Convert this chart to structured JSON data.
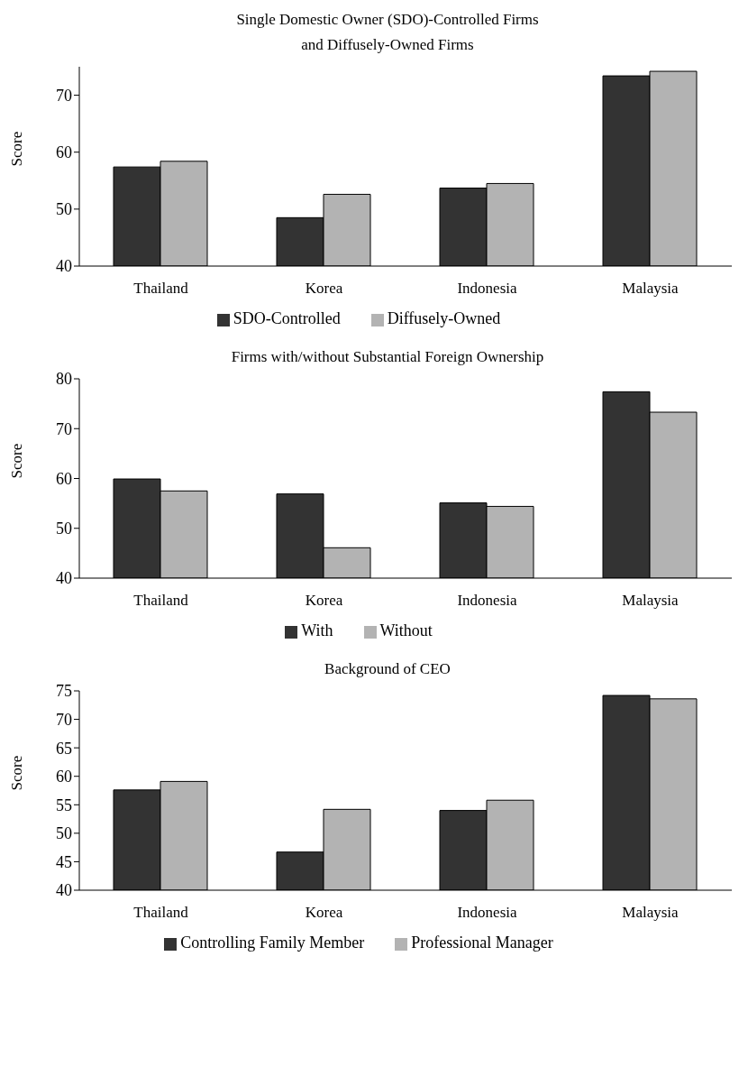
{
  "chart_data": [
    {
      "type": "bar",
      "title": "Single Domestic Owner (SDO)-Controlled Firms\nand Diffusely-Owned Firms",
      "ylabel": "Score",
      "categories": [
        "Thailand",
        "Korea",
        "Indonesia",
        "Malaysia"
      ],
      "series": [
        {
          "name": "SDO-Controlled",
          "color": "#333333",
          "values": [
            57.4,
            48.5,
            53.7,
            73.4
          ]
        },
        {
          "name": "Diffusely-Owned",
          "color": "#b3b3b3",
          "values": [
            58.4,
            52.6,
            54.5,
            74.2
          ]
        }
      ],
      "ylim": [
        40,
        75
      ],
      "yticks": [
        40,
        50,
        60,
        70
      ],
      "grid": false,
      "legend": "bottom"
    },
    {
      "type": "bar",
      "title": "Firms with/without Substantial Foreign Ownership",
      "ylabel": "Score",
      "categories": [
        "Thailand",
        "Korea",
        "Indonesia",
        "Malaysia"
      ],
      "series": [
        {
          "name": "With",
          "color": "#333333",
          "values": [
            59.9,
            56.9,
            55.1,
            77.4
          ]
        },
        {
          "name": "Without",
          "color": "#b3b3b3",
          "values": [
            57.5,
            46.1,
            54.4,
            73.3
          ]
        }
      ],
      "ylim": [
        40,
        80
      ],
      "yticks": [
        40,
        50,
        60,
        70,
        80
      ],
      "grid": false,
      "legend": "bottom"
    },
    {
      "type": "bar",
      "title": "Background of CEO",
      "ylabel": "Score",
      "categories": [
        "Thailand",
        "Korea",
        "Indonesia",
        "Malaysia"
      ],
      "series": [
        {
          "name": "Controlling Family Member",
          "color": "#333333",
          "values": [
            57.6,
            46.7,
            54.0,
            74.2
          ]
        },
        {
          "name": "Professional Manager",
          "color": "#b3b3b3",
          "values": [
            59.1,
            54.2,
            55.8,
            73.6
          ]
        }
      ],
      "ylim": [
        40,
        75
      ],
      "yticks": [
        40,
        45,
        50,
        55,
        60,
        65,
        70,
        75
      ],
      "grid": false,
      "legend": "bottom"
    }
  ]
}
